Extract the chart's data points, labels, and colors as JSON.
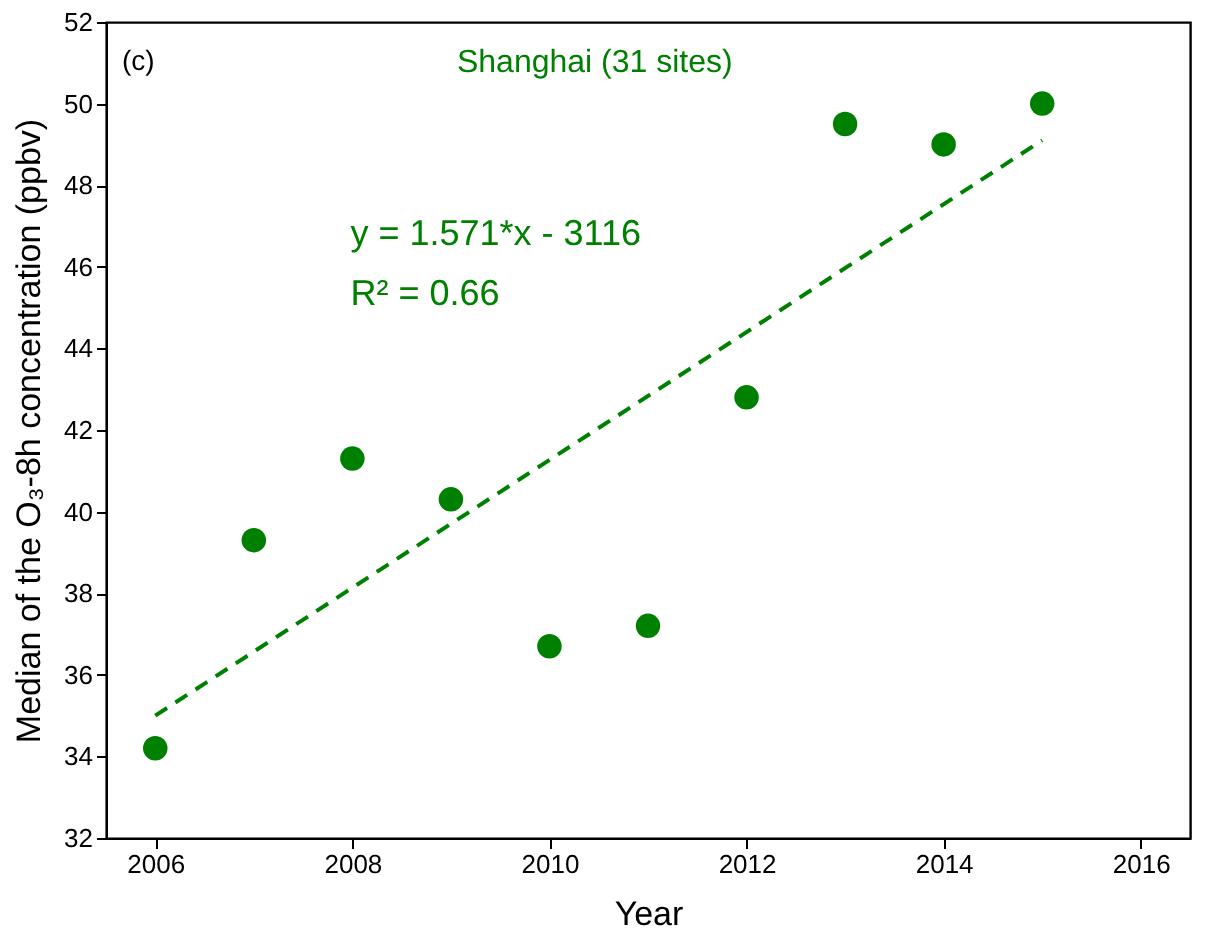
{
  "chart_data": {
    "type": "scatter",
    "xlabel": "Year",
    "ylabel": "Median of the O₃-8h concentration (ppbv)",
    "annotations": [
      "(c)",
      "Shanghai (31 sites)",
      "y = 1.571*x - 3116",
      "R² = 0.66"
    ],
    "xlim": [
      2005.5,
      2016.5
    ],
    "xticks": [
      2006,
      2008,
      2010,
      2012,
      2014,
      2016
    ],
    "ylim": [
      32,
      52
    ],
    "yticks": [
      32,
      34,
      36,
      38,
      40,
      42,
      44,
      46,
      48,
      50,
      52
    ],
    "grid": false,
    "series": [
      {
        "color": "#008000",
        "marker": "circle",
        "x": [
          2006,
          2007,
          2008,
          2009,
          2010,
          2011,
          2012,
          2013,
          2014,
          2015
        ],
        "values": [
          34.2,
          39.3,
          41.3,
          40.3,
          36.7,
          37.2,
          42.8,
          49.5,
          49.0,
          50.0
        ]
      },
      {
        "type": "line",
        "color": "#008000",
        "line_style": "dashed",
        "x": [
          2006,
          2015
        ],
        "values": [
          35.0,
          49.1
        ]
      }
    ]
  }
}
